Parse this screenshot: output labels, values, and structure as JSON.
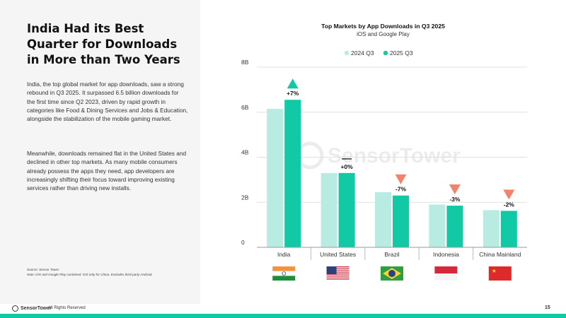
{
  "headline": "India Had its Best Quarter for Downloads in More than Two Years",
  "paragraph1": "India, the top global market for app downloads, saw a strong rebound in Q3 2025. It surpassed 6.5 billion downloads for the first time since Q2 2023, driven by rapid growth in categories like Food & Dining Services and Jobs & Education, alongside the stabilization of the mobile gaming market.",
  "paragraph2": "Meanwhile, downloads remained flat in the United States and declined in other top markets. As many mobile consumers already possess the apps they need, app developers are increasingly shifting their focus toward improving existing services rather than driving new installs.",
  "source_line1": "Source: Sensor Tower",
  "source_line2": "Note: iOS and Google Play combined. iOS only for China. Excludes third-party Android.",
  "footer": {
    "brand": "SensorTower",
    "rights": "All Rights Reserved",
    "page": "15"
  },
  "watermark": "SensorTower",
  "colors": {
    "series_2024": "#b8ebe1",
    "series_2025": "#12c9a6",
    "up": "#12c9a6",
    "down": "#f4826a",
    "flat": "#333333",
    "accent_bar": "#12c9a6"
  },
  "chart_data": {
    "type": "bar",
    "title": "Top Markets by App Downloads in Q3 2025",
    "subtitle": "iOS and Google Play",
    "categories": [
      "India",
      "United States",
      "Brazil",
      "Indonesia",
      "China Mainland"
    ],
    "series": [
      {
        "name": "2024 Q3",
        "values": [
          6.15,
          3.3,
          2.45,
          1.9,
          1.65
        ]
      },
      {
        "name": "2025 Q3",
        "values": [
          6.55,
          3.3,
          2.3,
          1.85,
          1.62
        ]
      }
    ],
    "changes": [
      "+7%",
      "+0%",
      "-7%",
      "-3%",
      "-2%"
    ],
    "change_direction": [
      "up",
      "flat",
      "down",
      "down",
      "down"
    ],
    "flags": [
      "india-flag",
      "united-states-flag",
      "brazil-flag",
      "indonesia-flag",
      "china-flag"
    ],
    "y_ticks": [
      "0",
      "2B",
      "4B",
      "6B",
      "8B"
    ],
    "ylim": [
      0,
      8
    ],
    "legend_position": "top-center",
    "grid": true
  }
}
